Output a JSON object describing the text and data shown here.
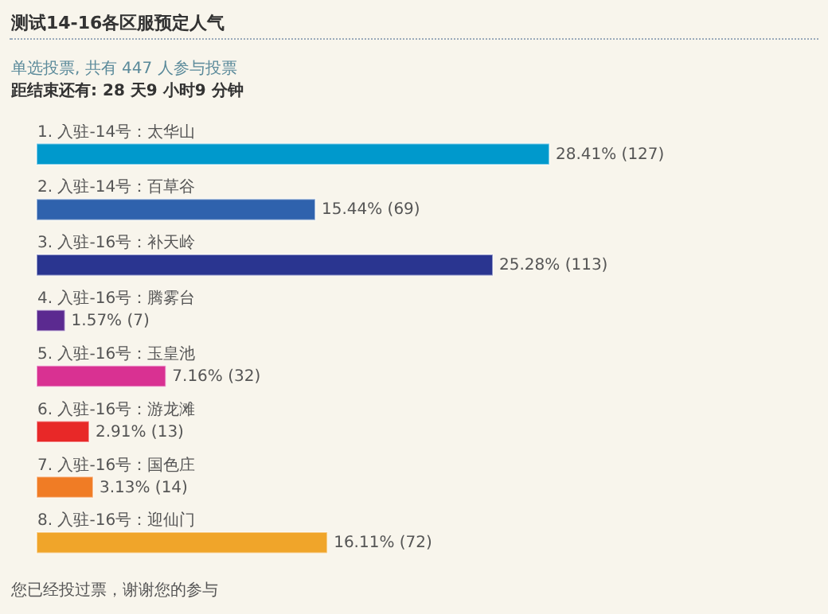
{
  "chart_data": {
    "type": "bar",
    "orientation": "horizontal",
    "title": "测试14-16各区服预定人气",
    "subtitle": "单选投票, 共有 447 人参与投票",
    "annotations": [
      "距结束还有: 28 天9 小时9 分钟",
      "您已经投过票，谢谢您的参与"
    ],
    "categories": [
      "1. 入驻-14号：太华山",
      "2. 入驻-14号：百草谷",
      "3. 入驻-16号：补天岭",
      "4. 入驻-16号：腾雾台",
      "5. 入驻-16号：玉皇池",
      "6. 入驻-16号：游龙滩",
      "7. 入驻-16号：国色庄",
      "8. 入驻-16号：迎仙门"
    ],
    "values": [
      28.41,
      15.44,
      25.28,
      1.57,
      7.16,
      2.91,
      3.13,
      16.11
    ],
    "value_labels": [
      "28.41% (127)",
      "15.44% (69)",
      "25.28% (113)",
      "1.57% (7)",
      "7.16% (32)",
      "2.91% (13)",
      "3.13% (14)",
      "16.11% (72)"
    ],
    "colors": [
      "#0099cc",
      "#2f62ad",
      "#2a3590",
      "#5b2a90",
      "#d93192",
      "#e82828",
      "#f07c25",
      "#f0a52a"
    ],
    "tick_labels": "y"
  }
}
